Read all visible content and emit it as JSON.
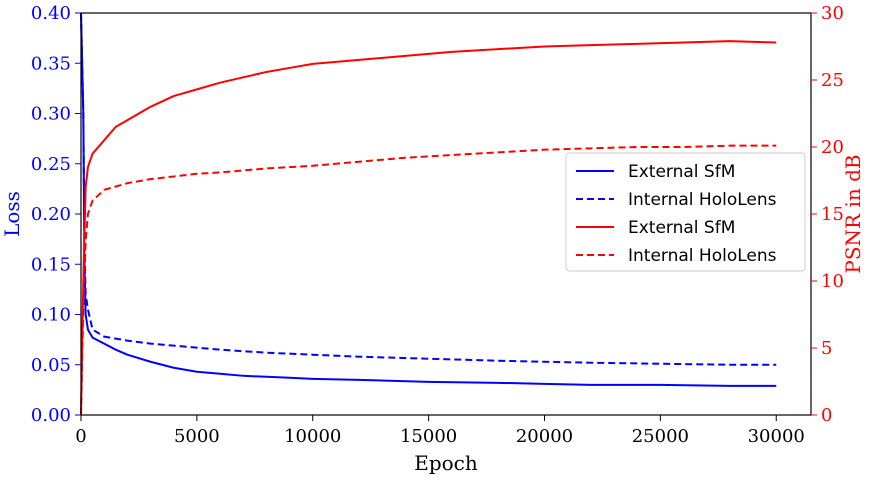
{
  "chart_data": {
    "type": "line",
    "xlabel": "Epoch",
    "ylabel_left": "Loss",
    "ylabel_right": "PSNR in dB",
    "xlim": [
      0,
      31500
    ],
    "ylim_left": [
      0,
      0.4
    ],
    "ylim_right": [
      0,
      30
    ],
    "x_ticks": [
      0,
      5000,
      10000,
      15000,
      20000,
      25000,
      30000
    ],
    "y_ticks_left": [
      0.0,
      0.05,
      0.1,
      0.15,
      0.2,
      0.25,
      0.3,
      0.35,
      0.4
    ],
    "y_ticks_left_labels": [
      "0.00",
      "0.05",
      "0.10",
      "0.15",
      "0.20",
      "0.25",
      "0.30",
      "0.35",
      "0.40"
    ],
    "y_ticks_right": [
      0,
      5,
      10,
      15,
      20,
      25,
      30
    ],
    "left_axis_color": "#0000ff",
    "right_axis_color": "#ff0000",
    "legend_position": "center-right",
    "series": [
      {
        "name": "External SfM",
        "axis": "left",
        "color": "#0000ff",
        "style": "solid",
        "x": [
          0,
          100,
          150,
          200,
          300,
          500,
          1000,
          1500,
          2000,
          3000,
          4000,
          5000,
          6000,
          7000,
          8000,
          9000,
          10000,
          12000,
          15000,
          18000,
          20000,
          22000,
          25000,
          28000,
          30000
        ],
        "y": [
          0.4,
          0.3,
          0.15,
          0.1,
          0.085,
          0.077,
          0.071,
          0.065,
          0.06,
          0.053,
          0.047,
          0.043,
          0.041,
          0.039,
          0.038,
          0.037,
          0.036,
          0.035,
          0.033,
          0.032,
          0.031,
          0.03,
          0.03,
          0.029,
          0.029
        ]
      },
      {
        "name": "Internal HoloLens",
        "axis": "left",
        "color": "#0000ff",
        "style": "dashed",
        "x": [
          0,
          100,
          150,
          200,
          300,
          500,
          1000,
          2000,
          3000,
          4000,
          5000,
          6000,
          8000,
          10000,
          12000,
          15000,
          18000,
          20000,
          22000,
          25000,
          28000,
          30000
        ],
        "y": [
          0.4,
          0.3,
          0.17,
          0.12,
          0.105,
          0.085,
          0.078,
          0.074,
          0.071,
          0.069,
          0.067,
          0.065,
          0.062,
          0.06,
          0.058,
          0.056,
          0.054,
          0.053,
          0.052,
          0.051,
          0.05,
          0.05
        ]
      },
      {
        "name": "External SfM",
        "axis": "right",
        "color": "#ff0000",
        "style": "solid",
        "x": [
          0,
          100,
          200,
          300,
          500,
          1000,
          1500,
          2000,
          3000,
          4000,
          5000,
          6000,
          7000,
          8000,
          9000,
          10000,
          12000,
          14000,
          16000,
          18000,
          20000,
          22000,
          24000,
          26000,
          28000,
          30000
        ],
        "y": [
          0,
          10,
          17,
          18.5,
          19.5,
          20.5,
          21.5,
          22.0,
          23.0,
          23.8,
          24.3,
          24.8,
          25.2,
          25.6,
          25.9,
          26.2,
          26.5,
          26.8,
          27.1,
          27.3,
          27.5,
          27.6,
          27.7,
          27.8,
          27.9,
          27.8
        ]
      },
      {
        "name": "Internal HoloLens",
        "axis": "right",
        "color": "#ff0000",
        "style": "dashed",
        "x": [
          0,
          100,
          200,
          300,
          500,
          1000,
          2000,
          3000,
          4000,
          5000,
          6000,
          8000,
          10000,
          12000,
          14000,
          16000,
          18000,
          20000,
          22000,
          24000,
          26000,
          28000,
          30000
        ],
        "y": [
          0,
          8,
          13,
          15,
          16,
          16.8,
          17.3,
          17.6,
          17.8,
          18.0,
          18.1,
          18.4,
          18.6,
          18.9,
          19.2,
          19.4,
          19.6,
          19.8,
          19.9,
          20.0,
          20.0,
          20.1,
          20.1
        ]
      }
    ]
  }
}
